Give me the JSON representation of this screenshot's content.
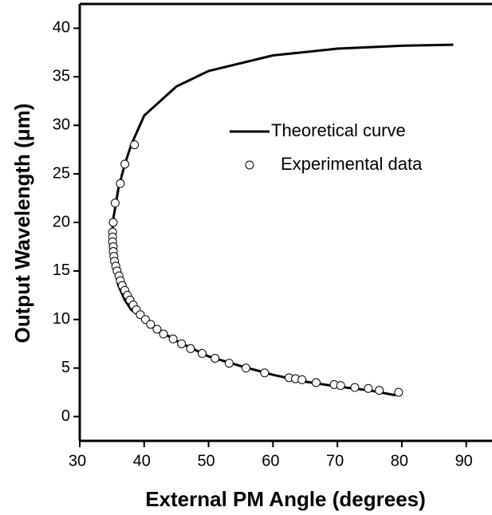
{
  "chart_data": {
    "type": "scatter",
    "xlabel": "External PM Angle (degrees)",
    "ylabel": "Output Wavelength (μm)",
    "xlim": [
      30,
      94
    ],
    "ylim": [
      -2.5,
      42.5
    ],
    "xticks": [
      30,
      40,
      50,
      60,
      70,
      80,
      90
    ],
    "yticks": [
      0,
      5,
      10,
      15,
      20,
      25,
      30,
      35,
      40
    ],
    "legend": "upper right",
    "series": [
      {
        "name": "Theoretical curve",
        "style": "line",
        "color": "#000000",
        "x": [
          88,
          80,
          70,
          60,
          50,
          45,
          40,
          38,
          37,
          36,
          35.5,
          35.1,
          35.2,
          35.5,
          36,
          37,
          38,
          40,
          42,
          45,
          50,
          55,
          60,
          65,
          70,
          75,
          79
        ],
        "values": [
          38.3,
          38.2,
          37.9,
          37.2,
          35.6,
          34,
          31,
          28,
          26,
          23.5,
          21.5,
          20,
          17,
          15,
          13.5,
          12,
          11,
          10,
          9,
          7.8,
          6.2,
          5.2,
          4.3,
          3.6,
          3.1,
          2.7,
          2.2
        ]
      },
      {
        "name": "Experimental data",
        "style": "marker",
        "color": "#ffffff",
        "x": [
          38.5,
          37,
          36.3,
          35.5,
          35.2,
          35.1,
          35.1,
          35.1,
          35.2,
          35.2,
          35.3,
          35.4,
          35.6,
          35.8,
          36.1,
          36.3,
          36.6,
          37,
          37.4,
          37.8,
          38.3,
          38.8,
          39.4,
          40.2,
          41,
          42,
          43,
          44.5,
          45.8,
          47.2,
          49,
          51,
          53.2,
          55.8,
          58.7,
          62.5,
          63.5,
          64.5,
          66.7,
          69.5,
          70.5,
          72.7,
          74.8,
          76.5,
          79.5
        ],
        "values": [
          28,
          26,
          24,
          22,
          20,
          19,
          18.5,
          18,
          17.5,
          17,
          16.5,
          16,
          15.5,
          15,
          14.5,
          14,
          13.5,
          13,
          12.5,
          12,
          11.5,
          11,
          10.5,
          10,
          9.5,
          9,
          8.5,
          8,
          7.5,
          7,
          6.5,
          6,
          5.5,
          5,
          4.5,
          4,
          3.9,
          3.8,
          3.5,
          3.3,
          3.2,
          3,
          2.9,
          2.7,
          2.5
        ]
      }
    ]
  }
}
